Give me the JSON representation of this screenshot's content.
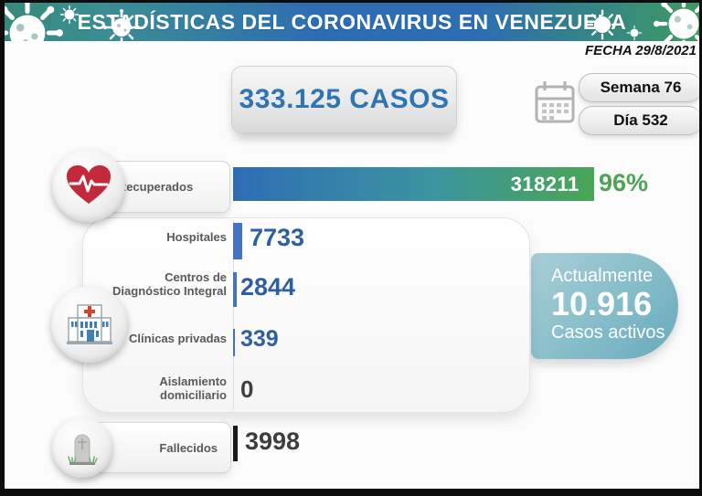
{
  "header": {
    "title": "ESTADÍSTICAS DEL CORONAVIRUS EN VENEZUELA"
  },
  "date_label": "FECHA 29/8/2021",
  "total_cases_label": "333.125 CASOS",
  "week_pill": "Semana 76",
  "day_pill": "Día 532",
  "recovered": {
    "label": "Recuperados",
    "value": "318211",
    "pct": "96%"
  },
  "panel": {
    "rows": [
      {
        "label": "Hospitales",
        "value": "7733"
      },
      {
        "label_line1": "Centros de",
        "label_line2": "Diagnóstico Integral",
        "value": "2844"
      },
      {
        "label": "Clínicas privadas",
        "value": "339"
      },
      {
        "label_line1": "Aislamiento",
        "label_line2": "domiciliario",
        "value": "0"
      }
    ]
  },
  "active": {
    "line1": "Actualmente",
    "number": "10.916",
    "line2": "Casos activos"
  },
  "deceased": {
    "label": "Fallecidos",
    "value": "3998"
  },
  "colors": {
    "header_teal": "#35897c",
    "header_blue": "#2d6db3",
    "header_green": "#3d9a60",
    "accent_blue": "#2e75b6",
    "bar_blue": "#4472c4",
    "bar_green": "#4aa653",
    "active_teal": "#68aabb",
    "deceased_black": "#1a1a1a"
  },
  "chart_data": {
    "type": "bar",
    "title": "ESTADÍSTICAS DEL CORONAVIRUS EN VENEZUELA",
    "date": "29/8/2021",
    "week": 76,
    "day": 532,
    "total_cases": 333125,
    "active_cases": 10916,
    "recovered_percent": 96,
    "categories": [
      "Recuperados",
      "Hospitales",
      "Centros de Diagnóstico Integral",
      "Clínicas privadas",
      "Aislamiento domiciliario",
      "Fallecidos"
    ],
    "values": [
      318211,
      7733,
      2844,
      339,
      0,
      3998
    ],
    "xlabel": "",
    "ylabel": "",
    "legend": "none",
    "grid": "off"
  }
}
